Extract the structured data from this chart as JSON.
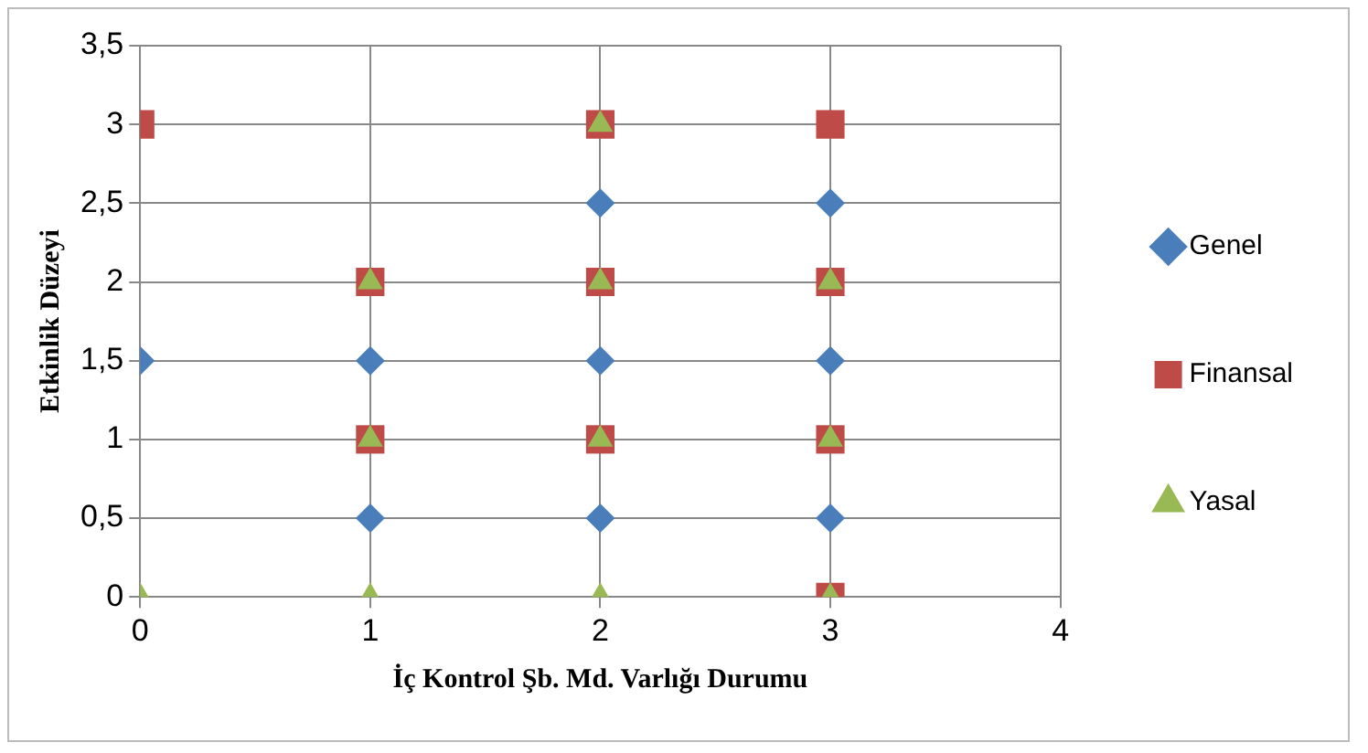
{
  "chart_data": {
    "type": "scatter",
    "xlabel": "İç Kontrol Şb. Md. Varlığı Durumu",
    "ylabel": "Etkinlik Düzeyi",
    "xlim": [
      0,
      4
    ],
    "xticks": [
      0,
      1,
      2,
      3,
      4
    ],
    "ylim": [
      0,
      3.5
    ],
    "yticks": [
      0,
      {
        "value": 0.5,
        "label": "0,5"
      },
      1,
      {
        "value": 1.5,
        "label": "1,5"
      },
      2,
      {
        "value": 2.5,
        "label": "2,5"
      },
      3,
      {
        "value": 3.5,
        "label": "3,5"
      }
    ],
    "grid": true,
    "legend": "right",
    "series": [
      {
        "name": "Genel",
        "color": "#4a7ebb",
        "marker": "diamond",
        "x": [
          0,
          1,
          1,
          2,
          2,
          2,
          3,
          3,
          3
        ],
        "values": [
          1.5,
          1.5,
          0.5,
          2.5,
          1.5,
          0.5,
          2.5,
          1.5,
          0.5
        ]
      },
      {
        "name": "Finansal",
        "color": "#be4b48",
        "marker": "square",
        "x": [
          0,
          1,
          1,
          2,
          2,
          2,
          3,
          3,
          3,
          3
        ],
        "values": [
          3,
          2,
          1,
          3,
          2,
          1,
          3,
          2,
          1,
          0
        ]
      },
      {
        "name": "Yasal",
        "color": "#98b954",
        "marker": "triangle",
        "x": [
          0,
          1,
          1,
          1,
          2,
          2,
          2,
          2,
          3,
          3,
          3
        ],
        "values": [
          0,
          2,
          1,
          0,
          3,
          2,
          1,
          0,
          2,
          1,
          0
        ]
      }
    ]
  }
}
